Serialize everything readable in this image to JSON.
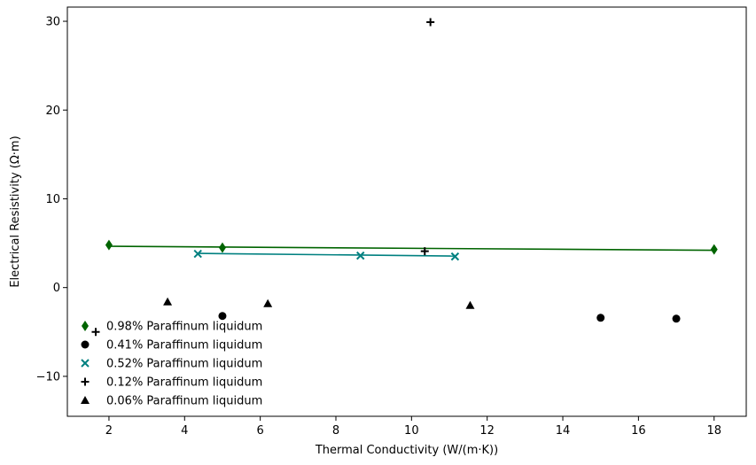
{
  "chart_data": {
    "type": "scatter",
    "title": "",
    "xlabel": "Thermal Conductivity (W/(m·K))",
    "ylabel": "Electrical Resistivity (Ω·m)",
    "xlim": [
      0.9,
      18.85
    ],
    "ylim": [
      -14.5,
      31.6
    ],
    "x_ticks": [
      2,
      4,
      6,
      8,
      10,
      12,
      14,
      16,
      18
    ],
    "x_tick_labels": [
      "2",
      "4",
      "6",
      "8",
      "10",
      "12",
      "14",
      "16",
      "18"
    ],
    "y_ticks": [
      -10,
      0,
      10,
      20,
      30
    ],
    "y_tick_labels": [
      "−10",
      "0",
      "10",
      "20",
      "30"
    ],
    "grid": false,
    "legend_position": "lower-left",
    "series": [
      {
        "name": "0.98% Paraffinum liquidum",
        "marker": "diamond",
        "color": "#006400",
        "x": [
          2.0,
          5.0,
          18.0
        ],
        "y": [
          4.8,
          4.5,
          4.3
        ],
        "fit_line": {
          "x": [
            2.0,
            18.0
          ],
          "y": [
            4.65,
            4.2
          ]
        }
      },
      {
        "name": "0.41% Paraffinum liquidum",
        "marker": "circle",
        "color": "#000000",
        "x": [
          5.0,
          15.0,
          17.0
        ],
        "y": [
          -3.2,
          -3.4,
          -3.5
        ]
      },
      {
        "name": "0.52% Paraffinum liquidum",
        "marker": "x",
        "color": "#008080",
        "x": [
          4.35,
          8.65,
          11.15
        ],
        "y": [
          3.8,
          3.6,
          3.5
        ],
        "fit_line": {
          "x": [
            4.35,
            11.15
          ],
          "y": [
            3.85,
            3.55
          ]
        }
      },
      {
        "name": "0.12% Paraffinum liquidum",
        "marker": "plus",
        "color": "#000000",
        "x": [
          1.65,
          10.35,
          10.5
        ],
        "y": [
          -5.0,
          4.1,
          29.9
        ]
      },
      {
        "name": "0.06% Paraffinum liquidum",
        "marker": "triangle",
        "color": "#000000",
        "x": [
          3.55,
          6.2,
          11.55
        ],
        "y": [
          -1.6,
          -1.8,
          -2.0
        ]
      }
    ]
  }
}
